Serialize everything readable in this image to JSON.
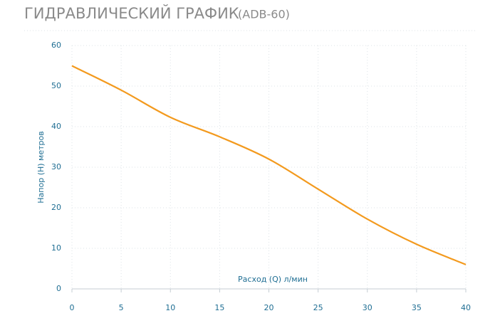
{
  "chart_data": {
    "type": "line",
    "title": "ГИДРАВЛИЧЕСКИЙ ГРАФИК",
    "subtitle": "(ADB-60)",
    "x_label": "Расход (Q) л/мин",
    "y_label": "Напор (H) метров",
    "x": [
      0,
      5,
      10,
      15,
      20,
      25,
      30,
      35,
      40
    ],
    "series": [
      {
        "name": "ADB-60",
        "color": "#f39a1e",
        "values": [
          55,
          49,
          42.3,
          37.5,
          32,
          24.6,
          17.2,
          11,
          6
        ]
      }
    ],
    "xlim": [
      0,
      40
    ],
    "xticks": [
      0,
      5,
      10,
      15,
      20,
      25,
      30,
      35,
      40
    ],
    "ylim": [
      0,
      60
    ],
    "yticks": [
      0,
      10,
      20,
      30,
      40,
      50,
      60
    ],
    "grid": true
  }
}
